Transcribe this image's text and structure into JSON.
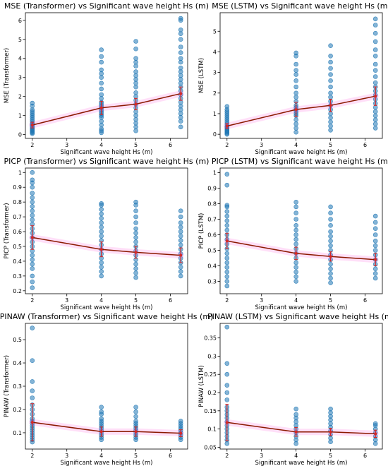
{
  "colors": {
    "points": "#1f77b4",
    "trend": "#8b1a00",
    "errorbar": "#d62728",
    "band": "#ff4fd8",
    "axes": "#000000"
  },
  "chart_data": [
    {
      "type": "scatter",
      "title": "MSE (Transformer) vs Significant wave height Hs (m)",
      "xlabel": "Significant wave height Hs (m)",
      "ylabel": "MSE (Transformer)",
      "xlim": [
        1.8,
        6.5
      ],
      "ylim": [
        -0.2,
        6.4
      ],
      "xticks": [
        2,
        3,
        4,
        5,
        6
      ],
      "yticks": [
        0,
        1,
        2,
        3,
        4,
        5,
        6
      ],
      "categories_x": [
        2,
        4,
        5,
        6.3
      ],
      "scatter_y": [
        [
          0.05,
          0.1,
          0.15,
          0.2,
          0.25,
          0.3,
          0.35,
          0.4,
          0.45,
          0.5,
          0.55,
          0.6,
          0.7,
          0.8,
          0.9,
          1.0,
          1.1,
          1.2,
          1.3,
          1.5,
          1.65
        ],
        [
          0.1,
          0.2,
          0.3,
          0.5,
          0.7,
          0.9,
          1.0,
          1.1,
          1.2,
          1.3,
          1.4,
          1.5,
          1.6,
          1.7,
          1.9,
          2.1,
          2.4,
          2.7,
          3.0,
          3.2,
          3.4,
          3.8,
          4.1,
          4.45
        ],
        [
          0.2,
          0.4,
          0.6,
          0.8,
          1.0,
          1.2,
          1.4,
          1.6,
          1.8,
          2.0,
          2.2,
          2.5,
          2.7,
          2.9,
          3.1,
          3.3,
          3.6,
          3.8,
          4.0,
          4.5,
          4.9
        ],
        [
          0.4,
          0.7,
          0.9,
          1.1,
          1.3,
          1.5,
          1.7,
          1.9,
          2.1,
          2.3,
          2.5,
          2.7,
          2.9,
          3.1,
          3.3,
          3.5,
          3.8,
          4.0,
          4.3,
          4.6,
          5.0,
          5.3,
          5.5,
          6.0,
          6.1
        ]
      ],
      "mean": [
        0.5,
        1.4,
        1.6,
        2.15
      ],
      "err": [
        0.15,
        0.35,
        0.3,
        0.35
      ]
    },
    {
      "type": "scatter",
      "title": "MSE (LSTM) vs Significant wave height Hs (m)",
      "xlabel": "Significant wave height Hs (m)",
      "ylabel": "MSE (LSTM)",
      "xlim": [
        1.8,
        6.5
      ],
      "ylim": [
        -0.2,
        5.9
      ],
      "xticks": [
        2,
        3,
        4,
        5,
        6
      ],
      "yticks": [
        0,
        1,
        2,
        3,
        4,
        5
      ],
      "categories_x": [
        2,
        4,
        5,
        6.3
      ],
      "scatter_y": [
        [
          0.0,
          0.05,
          0.1,
          0.15,
          0.2,
          0.25,
          0.3,
          0.35,
          0.4,
          0.5,
          0.6,
          0.7,
          0.8,
          0.9,
          1.0,
          1.1,
          1.2,
          1.35
        ],
        [
          0.1,
          0.3,
          0.5,
          0.7,
          0.9,
          1.0,
          1.1,
          1.2,
          1.3,
          1.4,
          1.6,
          1.8,
          2.0,
          2.3,
          2.6,
          2.9,
          3.1,
          3.4,
          3.8,
          3.95
        ],
        [
          0.2,
          0.4,
          0.6,
          0.8,
          1.0,
          1.2,
          1.4,
          1.6,
          1.8,
          2.0,
          2.3,
          2.6,
          2.9,
          3.2,
          3.5,
          3.8,
          4.3
        ],
        [
          0.3,
          0.5,
          0.7,
          0.9,
          1.1,
          1.3,
          1.5,
          1.7,
          1.9,
          2.1,
          2.3,
          2.5,
          2.8,
          3.1,
          3.4,
          3.8,
          4.1,
          4.5,
          4.9,
          5.3,
          5.6
        ]
      ],
      "mean": [
        0.4,
        1.2,
        1.4,
        1.85
      ],
      "err": [
        0.12,
        0.35,
        0.3,
        0.45
      ]
    },
    {
      "type": "scatter",
      "title": "PICP (Transformer) vs Significant wave height Hs (m)",
      "xlabel": "Significant wave height Hs (m)",
      "ylabel": "PICP (Transformer)",
      "xlim": [
        1.8,
        6.5
      ],
      "ylim": [
        0.18,
        1.03
      ],
      "xticks": [
        2,
        3,
        4,
        5,
        6
      ],
      "yticks": [
        0.2,
        0.3,
        0.4,
        0.5,
        0.6,
        0.7,
        0.8,
        0.9,
        1.0
      ],
      "categories_x": [
        2,
        4,
        5,
        6.3
      ],
      "scatter_y": [
        [
          0.22,
          0.26,
          0.3,
          0.35,
          0.38,
          0.41,
          0.44,
          0.47,
          0.5,
          0.53,
          0.56,
          0.59,
          0.62,
          0.65,
          0.68,
          0.71,
          0.74,
          0.77,
          0.8,
          0.83,
          0.86,
          0.9,
          0.93,
          0.95,
          1.0
        ],
        [
          0.3,
          0.33,
          0.36,
          0.39,
          0.42,
          0.45,
          0.48,
          0.51,
          0.54,
          0.57,
          0.6,
          0.63,
          0.66,
          0.69,
          0.72,
          0.75,
          0.78,
          0.79
        ],
        [
          0.29,
          0.32,
          0.35,
          0.38,
          0.41,
          0.44,
          0.47,
          0.5,
          0.53,
          0.56,
          0.59,
          0.62,
          0.66,
          0.7,
          0.74,
          0.78,
          0.8
        ],
        [
          0.3,
          0.33,
          0.36,
          0.39,
          0.42,
          0.45,
          0.48,
          0.51,
          0.54,
          0.57,
          0.6,
          0.63,
          0.66,
          0.7,
          0.74
        ]
      ],
      "mean": [
        0.56,
        0.48,
        0.46,
        0.44
      ],
      "err": [
        0.08,
        0.05,
        0.04,
        0.05
      ]
    },
    {
      "type": "scatter",
      "title": "PICP (LSTM) vs Significant wave height Hs (m)",
      "xlabel": "Significant wave height Hs (m)",
      "ylabel": "PICP (LSTM)",
      "xlim": [
        1.8,
        6.5
      ],
      "ylim": [
        0.22,
        1.03
      ],
      "xticks": [
        2,
        3,
        4,
        5,
        6
      ],
      "yticks": [
        0.3,
        0.4,
        0.5,
        0.6,
        0.7,
        0.8,
        0.9,
        1.0
      ],
      "categories_x": [
        2,
        4,
        5,
        6.3
      ],
      "scatter_y": [
        [
          0.27,
          0.3,
          0.33,
          0.36,
          0.39,
          0.42,
          0.45,
          0.48,
          0.51,
          0.54,
          0.57,
          0.6,
          0.63,
          0.66,
          0.69,
          0.72,
          0.75,
          0.78,
          0.79,
          0.92,
          0.99
        ],
        [
          0.3,
          0.33,
          0.36,
          0.39,
          0.42,
          0.45,
          0.48,
          0.51,
          0.54,
          0.57,
          0.6,
          0.63,
          0.66,
          0.7,
          0.74,
          0.78,
          0.81
        ],
        [
          0.29,
          0.32,
          0.35,
          0.38,
          0.41,
          0.44,
          0.47,
          0.5,
          0.53,
          0.56,
          0.59,
          0.62,
          0.66,
          0.7,
          0.74,
          0.78
        ],
        [
          0.32,
          0.35,
          0.38,
          0.41,
          0.44,
          0.47,
          0.5,
          0.53,
          0.56,
          0.6,
          0.64,
          0.68,
          0.72
        ]
      ],
      "mean": [
        0.56,
        0.48,
        0.46,
        0.44
      ],
      "err": [
        0.05,
        0.04,
        0.03,
        0.04
      ]
    },
    {
      "type": "scatter",
      "title": "PINAW (Transformer) vs Significant wave height Hs (m)",
      "xlabel": "Significant wave height Hs (m)",
      "ylabel": "PINAW (Transformer)",
      "xlim": [
        1.8,
        6.5
      ],
      "ylim": [
        0.03,
        0.57
      ],
      "xticks": [
        2,
        3,
        4,
        5,
        6
      ],
      "yticks": [
        0.1,
        0.2,
        0.3,
        0.4,
        0.5
      ],
      "categories_x": [
        2,
        4,
        5,
        6.3
      ],
      "scatter_y": [
        [
          0.06,
          0.07,
          0.08,
          0.09,
          0.1,
          0.11,
          0.12,
          0.13,
          0.14,
          0.15,
          0.16,
          0.18,
          0.2,
          0.22,
          0.25,
          0.28,
          0.32,
          0.41,
          0.55
        ],
        [
          0.07,
          0.08,
          0.09,
          0.1,
          0.11,
          0.12,
          0.13,
          0.14,
          0.15,
          0.16,
          0.18,
          0.19,
          0.21
        ],
        [
          0.07,
          0.08,
          0.09,
          0.1,
          0.11,
          0.12,
          0.13,
          0.14,
          0.15,
          0.17,
          0.19,
          0.21
        ],
        [
          0.07,
          0.08,
          0.09,
          0.1,
          0.11,
          0.12,
          0.13,
          0.14,
          0.15
        ]
      ],
      "mean": [
        0.145,
        0.105,
        0.105,
        0.098
      ],
      "err": [
        0.08,
        0.02,
        0.02,
        0.015
      ]
    },
    {
      "type": "scatter",
      "title": "PINAW (LSTM) vs Significant wave height Hs (m)",
      "xlabel": "Significant wave height Hs (m)",
      "ylabel": "PINAW (LSTM)",
      "xlim": [
        1.8,
        6.5
      ],
      "ylim": [
        0.045,
        0.39
      ],
      "xticks": [
        2,
        3,
        4,
        5,
        6
      ],
      "yticks": [
        0.05,
        0.1,
        0.15,
        0.2,
        0.25,
        0.3,
        0.35
      ],
      "categories_x": [
        2,
        4,
        5,
        6.3
      ],
      "scatter_y": [
        [
          0.06,
          0.07,
          0.08,
          0.09,
          0.1,
          0.11,
          0.12,
          0.13,
          0.14,
          0.15,
          0.16,
          0.18,
          0.2,
          0.22,
          0.25,
          0.28,
          0.38
        ],
        [
          0.06,
          0.07,
          0.08,
          0.09,
          0.1,
          0.11,
          0.12,
          0.13,
          0.14,
          0.155
        ],
        [
          0.065,
          0.075,
          0.085,
          0.095,
          0.105,
          0.115,
          0.125,
          0.135,
          0.145,
          0.155
        ],
        [
          0.06,
          0.07,
          0.08,
          0.09,
          0.1,
          0.11,
          0.115
        ]
      ],
      "mean": [
        0.118,
        0.092,
        0.092,
        0.087
      ],
      "err": [
        0.05,
        0.012,
        0.01,
        0.01
      ]
    }
  ]
}
